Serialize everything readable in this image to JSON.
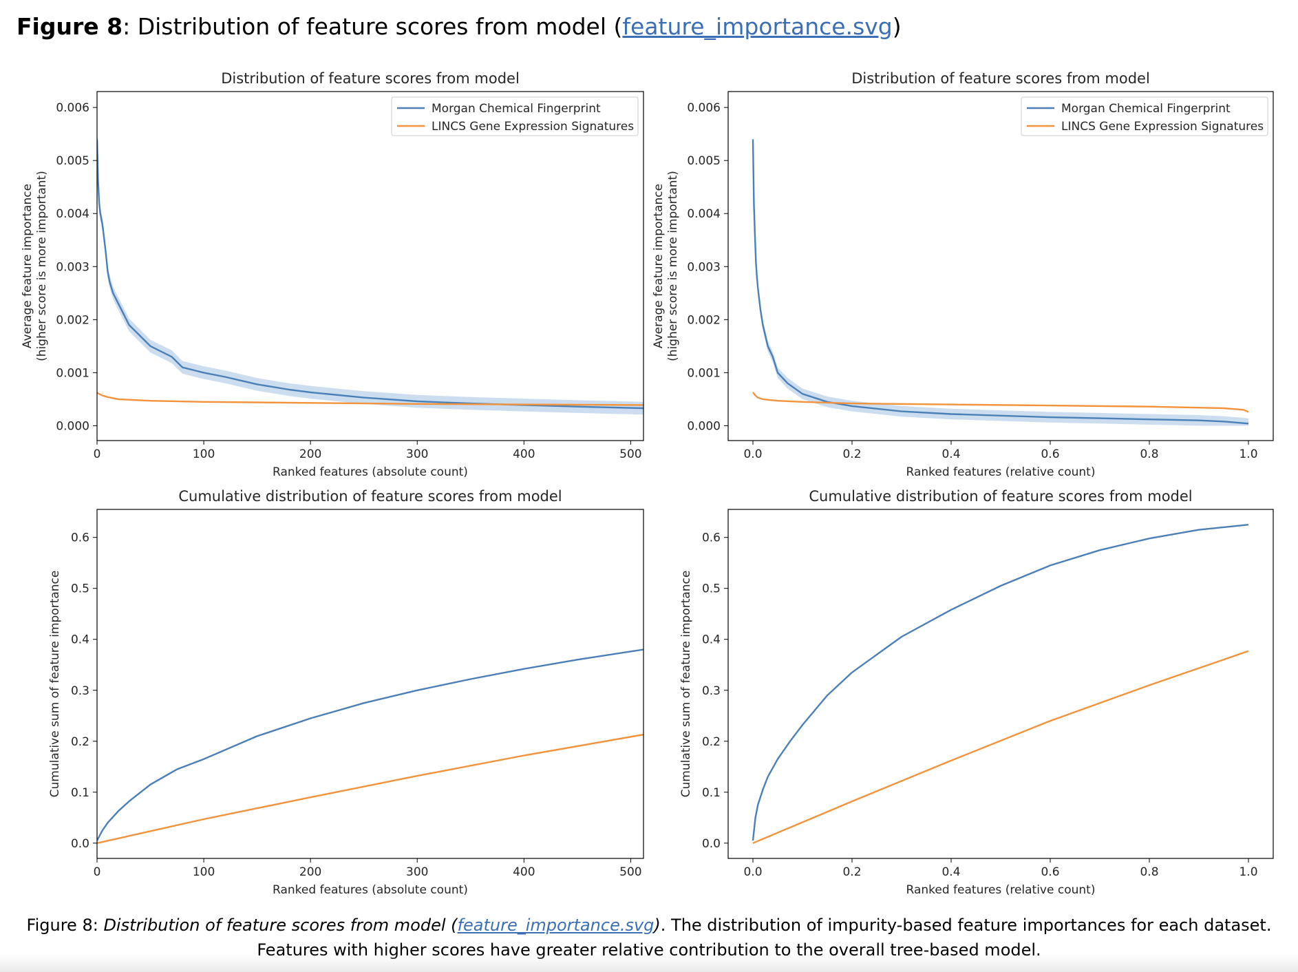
{
  "heading": {
    "label": "Figure 8",
    "separator": ": ",
    "title": "Distribution of feature scores from model",
    "open_paren": " (",
    "link": "feature_importance.svg",
    "close_paren": ")"
  },
  "caption": {
    "label": "Figure 8",
    "separator": ": ",
    "italic_text": "Distribution of feature scores from model (",
    "link": "feature_importance.svg",
    "italic_close": ")",
    "text": ". The distribution of impurity-based feature importances for each dataset. Features with higher scores have greater relative contribution to the overall tree-based model."
  },
  "colors": {
    "morgan": "#4a7fb7",
    "lincs": "#f2923a",
    "band": "#b7cfea",
    "link": "#3a6fb5"
  },
  "chart_data": [
    {
      "type": "line",
      "title": "Distribution of feature scores from model",
      "xlabel": "Ranked features (absolute count)",
      "ylabel": [
        "Average feature importance",
        "(higher score is more important)"
      ],
      "xlim": [
        0,
        512
      ],
      "ylim": [
        -0.00028,
        0.0063
      ],
      "xticks": [
        0,
        100,
        200,
        300,
        400,
        500
      ],
      "xtick_labels": [
        "0",
        "100",
        "200",
        "300",
        "400",
        "500"
      ],
      "yticks": [
        0,
        0.001,
        0.002,
        0.003,
        0.004,
        0.005,
        0.006
      ],
      "ytick_labels": [
        "0.000",
        "0.001",
        "0.002",
        "0.003",
        "0.004",
        "0.005",
        "0.006"
      ],
      "legend": "upper right",
      "grid": false,
      "series": [
        {
          "name": "Morgan Chemical Fingerprint",
          "color_key": "morgan",
          "band": 0.00012,
          "x": [
            0,
            1,
            2,
            3,
            5,
            8,
            10,
            12,
            15,
            20,
            25,
            30,
            35,
            40,
            45,
            50,
            60,
            70,
            80,
            90,
            100,
            120,
            150,
            180,
            200,
            250,
            300,
            350,
            400,
            450,
            512
          ],
          "y": [
            0.0054,
            0.0046,
            0.0042,
            0.004,
            0.0038,
            0.0033,
            0.0029,
            0.0027,
            0.0025,
            0.0023,
            0.0021,
            0.0019,
            0.0018,
            0.0017,
            0.0016,
            0.0015,
            0.0014,
            0.0013,
            0.0011,
            0.00105,
            0.001,
            0.00092,
            0.00078,
            0.00068,
            0.00063,
            0.00053,
            0.00046,
            0.00042,
            0.00039,
            0.00036,
            0.00033
          ]
        },
        {
          "name": "LINCS Gene Expression Signatures",
          "color_key": "lincs",
          "band": 0,
          "x": [
            0,
            5,
            10,
            15,
            20,
            30,
            50,
            100,
            200,
            300,
            400,
            512
          ],
          "y": [
            0.00062,
            0.00057,
            0.00054,
            0.00052,
            0.0005,
            0.00049,
            0.00047,
            0.00045,
            0.00043,
            0.00041,
            0.0004,
            0.00039
          ]
        }
      ]
    },
    {
      "type": "line",
      "title": "Distribution of feature scores from model",
      "xlabel": "Ranked features (relative count)",
      "ylabel": [
        "Average feature importance",
        "(higher score is more important)"
      ],
      "xlim": [
        -0.05,
        1.05
      ],
      "ylim": [
        -0.00028,
        0.0063
      ],
      "xticks": [
        0,
        0.2,
        0.4,
        0.6,
        0.8,
        1.0
      ],
      "xtick_labels": [
        "0.0",
        "0.2",
        "0.4",
        "0.6",
        "0.8",
        "1.0"
      ],
      "yticks": [
        0,
        0.001,
        0.002,
        0.003,
        0.004,
        0.005,
        0.006
      ],
      "ytick_labels": [
        "0.000",
        "0.001",
        "0.002",
        "0.003",
        "0.004",
        "0.005",
        "0.006"
      ],
      "legend": "upper right",
      "grid": false,
      "series": [
        {
          "name": "Morgan Chemical Fingerprint",
          "color_key": "morgan",
          "band": 0.0001,
          "x": [
            0,
            0.002,
            0.004,
            0.006,
            0.008,
            0.01,
            0.015,
            0.02,
            0.03,
            0.04,
            0.05,
            0.07,
            0.1,
            0.15,
            0.2,
            0.3,
            0.4,
            0.5,
            0.6,
            0.7,
            0.8,
            0.9,
            0.95,
            1.0
          ],
          "y": [
            0.0054,
            0.0042,
            0.0036,
            0.0031,
            0.0028,
            0.0026,
            0.0022,
            0.0019,
            0.0015,
            0.0013,
            0.001,
            0.0008,
            0.0006,
            0.00045,
            0.00037,
            0.00027,
            0.00022,
            0.00019,
            0.00016,
            0.00014,
            0.00012,
            0.0001,
            8e-05,
            4e-05
          ]
        },
        {
          "name": "LINCS Gene Expression Signatures",
          "color_key": "lincs",
          "band": 0,
          "x": [
            0,
            0.005,
            0.01,
            0.02,
            0.05,
            0.1,
            0.2,
            0.4,
            0.6,
            0.8,
            0.9,
            0.95,
            0.99,
            1.0
          ],
          "y": [
            0.00063,
            0.00057,
            0.00053,
            0.0005,
            0.00047,
            0.00045,
            0.00042,
            0.0004,
            0.00038,
            0.00036,
            0.00034,
            0.00033,
            0.0003,
            0.00026
          ]
        }
      ]
    },
    {
      "type": "line",
      "title": "Cumulative distribution of feature scores from model",
      "xlabel": "Ranked features (absolute count)",
      "ylabel": [
        "Cumulative sum of feature importance"
      ],
      "xlim": [
        0,
        512
      ],
      "ylim": [
        -0.03,
        0.655
      ],
      "xticks": [
        0,
        100,
        200,
        300,
        400,
        500
      ],
      "xtick_labels": [
        "0",
        "100",
        "200",
        "300",
        "400",
        "500"
      ],
      "yticks": [
        0,
        0.1,
        0.2,
        0.3,
        0.4,
        0.5,
        0.6
      ],
      "ytick_labels": [
        "0.0",
        "0.1",
        "0.2",
        "0.3",
        "0.4",
        "0.5",
        "0.6"
      ],
      "legend": "none",
      "grid": false,
      "series": [
        {
          "name": "Morgan Chemical Fingerprint",
          "color_key": "morgan",
          "band": 0,
          "x": [
            0,
            5,
            10,
            20,
            30,
            50,
            75,
            100,
            150,
            200,
            250,
            300,
            350,
            400,
            450,
            512
          ],
          "y": [
            0.005,
            0.025,
            0.04,
            0.063,
            0.082,
            0.115,
            0.145,
            0.165,
            0.21,
            0.245,
            0.275,
            0.3,
            0.322,
            0.342,
            0.36,
            0.38
          ]
        },
        {
          "name": "LINCS Gene Expression Signatures",
          "color_key": "lincs",
          "band": 0,
          "x": [
            0,
            100,
            200,
            300,
            400,
            512
          ],
          "y": [
            0.0,
            0.047,
            0.09,
            0.132,
            0.172,
            0.213
          ]
        }
      ]
    },
    {
      "type": "line",
      "title": "Cumulative distribution of feature scores from model",
      "xlabel": "Ranked features (relative count)",
      "ylabel": [
        "Cumulative sum of feature importance"
      ],
      "xlim": [
        -0.05,
        1.05
      ],
      "ylim": [
        -0.03,
        0.655
      ],
      "xticks": [
        0,
        0.2,
        0.4,
        0.6,
        0.8,
        1.0
      ],
      "xtick_labels": [
        "0.0",
        "0.2",
        "0.4",
        "0.6",
        "0.8",
        "1.0"
      ],
      "yticks": [
        0,
        0.1,
        0.2,
        0.3,
        0.4,
        0.5,
        0.6
      ],
      "ytick_labels": [
        "0.0",
        "0.1",
        "0.2",
        "0.3",
        "0.4",
        "0.5",
        "0.6"
      ],
      "legend": "none",
      "grid": false,
      "series": [
        {
          "name": "Morgan Chemical Fingerprint",
          "color_key": "morgan",
          "band": 0,
          "x": [
            0,
            0.005,
            0.01,
            0.02,
            0.03,
            0.05,
            0.075,
            0.1,
            0.15,
            0.2,
            0.3,
            0.4,
            0.5,
            0.6,
            0.7,
            0.8,
            0.9,
            1.0
          ],
          "y": [
            0.005,
            0.05,
            0.075,
            0.105,
            0.13,
            0.165,
            0.2,
            0.232,
            0.29,
            0.335,
            0.405,
            0.458,
            0.505,
            0.545,
            0.575,
            0.598,
            0.615,
            0.625
          ]
        },
        {
          "name": "LINCS Gene Expression Signatures",
          "color_key": "lincs",
          "band": 0,
          "x": [
            0,
            0.2,
            0.4,
            0.6,
            0.8,
            1.0
          ],
          "y": [
            0.0,
            0.082,
            0.162,
            0.24,
            0.31,
            0.377
          ]
        }
      ]
    }
  ]
}
